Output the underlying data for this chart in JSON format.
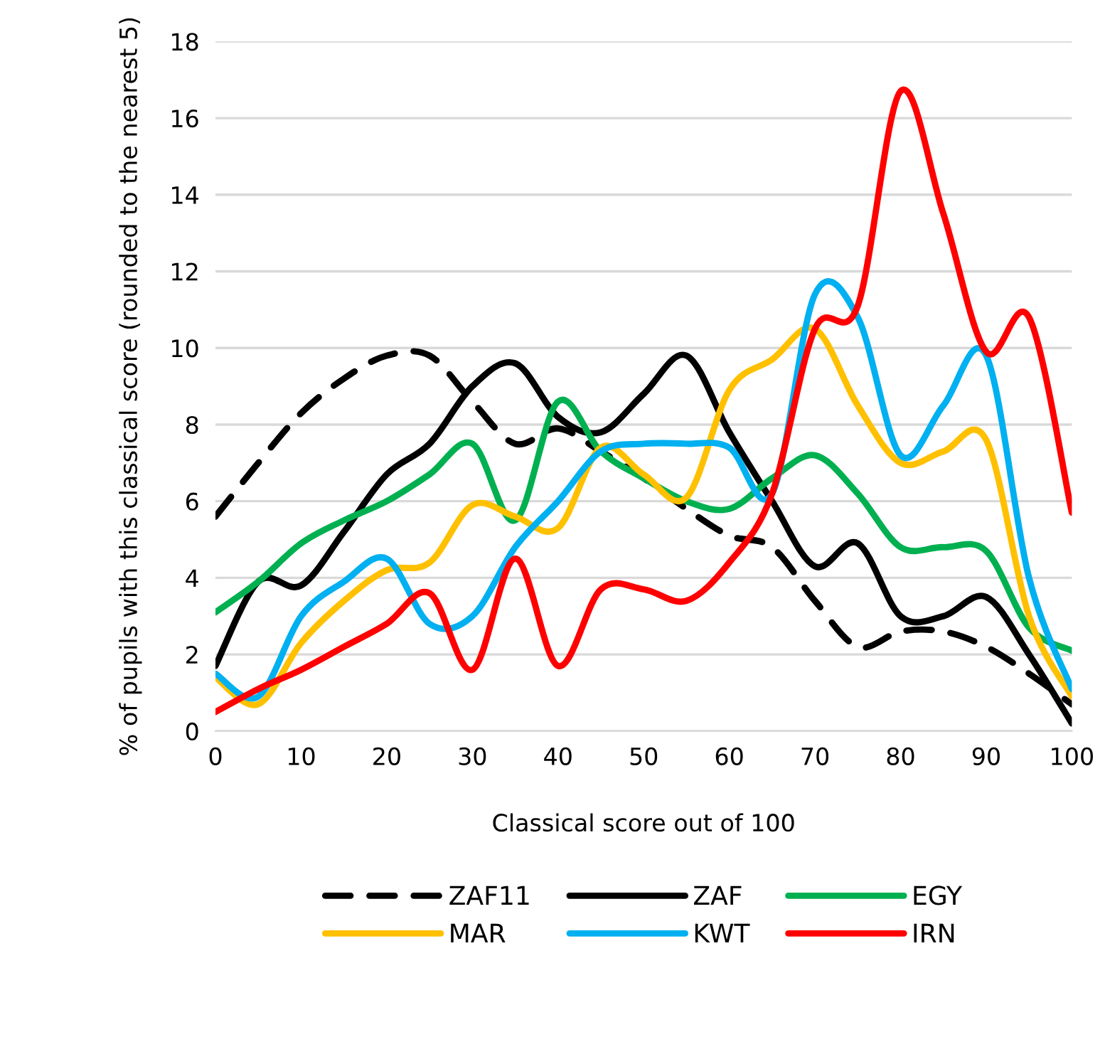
{
  "chart_data": {
    "type": "line",
    "xlabel": "Classical score out of 100",
    "ylabel": "% of pupils with this classical score (rounded to the nearest 5)",
    "x": [
      0,
      5,
      10,
      15,
      20,
      25,
      30,
      35,
      40,
      45,
      50,
      55,
      60,
      65,
      70,
      75,
      80,
      85,
      90,
      95,
      100
    ],
    "xlim": [
      0,
      100
    ],
    "xticks": [
      0,
      10,
      20,
      30,
      40,
      50,
      60,
      70,
      80,
      90,
      100
    ],
    "ylim": [
      0,
      18
    ],
    "yticks": [
      0,
      2,
      4,
      6,
      8,
      10,
      12,
      14,
      16,
      18
    ],
    "grid": "y",
    "legend": "bottom",
    "line_style": "solid",
    "series": [
      {
        "name": "ZAF11",
        "color": "#000000",
        "line_style": "dashed",
        "values": [
          5.6,
          7.0,
          8.3,
          9.2,
          9.8,
          9.8,
          8.6,
          7.5,
          7.9,
          7.3,
          6.6,
          5.8,
          5.1,
          4.8,
          3.4,
          2.2,
          2.6,
          2.6,
          2.2,
          1.5,
          0.7
        ]
      },
      {
        "name": "ZAF",
        "color": "#000000",
        "values": [
          1.7,
          3.9,
          3.8,
          5.2,
          6.7,
          7.5,
          9.0,
          9.6,
          8.2,
          7.8,
          8.8,
          9.8,
          7.8,
          6.0,
          4.3,
          4.9,
          3.0,
          3.0,
          3.5,
          2.0,
          0.2
        ]
      },
      {
        "name": "EGY",
        "color": "#00b050",
        "values": [
          3.1,
          3.9,
          4.9,
          5.5,
          6.0,
          6.7,
          7.5,
          5.5,
          8.6,
          7.3,
          6.6,
          6.0,
          5.8,
          6.6,
          7.2,
          6.2,
          4.8,
          4.8,
          4.7,
          2.7,
          2.1
        ]
      },
      {
        "name": "MAR",
        "color": "#ffc000",
        "values": [
          1.4,
          0.7,
          2.3,
          3.4,
          4.2,
          4.4,
          5.9,
          5.6,
          5.3,
          7.4,
          6.7,
          6.1,
          8.9,
          9.7,
          10.5,
          8.5,
          7.0,
          7.3,
          7.6,
          3.0,
          0.9
        ]
      },
      {
        "name": "KWT",
        "color": "#00b0f0",
        "values": [
          1.5,
          0.9,
          3.0,
          3.9,
          4.5,
          2.8,
          3.0,
          4.8,
          6.0,
          7.3,
          7.5,
          7.5,
          7.4,
          6.2,
          11.4,
          10.8,
          7.2,
          8.5,
          9.8,
          4.0,
          1.1
        ]
      },
      {
        "name": "IRN",
        "color": "#ff0000",
        "values": [
          0.5,
          1.1,
          1.6,
          2.2,
          2.8,
          3.6,
          1.6,
          4.5,
          1.7,
          3.7,
          3.7,
          3.4,
          4.4,
          6.2,
          10.5,
          11.1,
          16.7,
          13.5,
          9.9,
          10.8,
          5.7
        ]
      }
    ]
  }
}
